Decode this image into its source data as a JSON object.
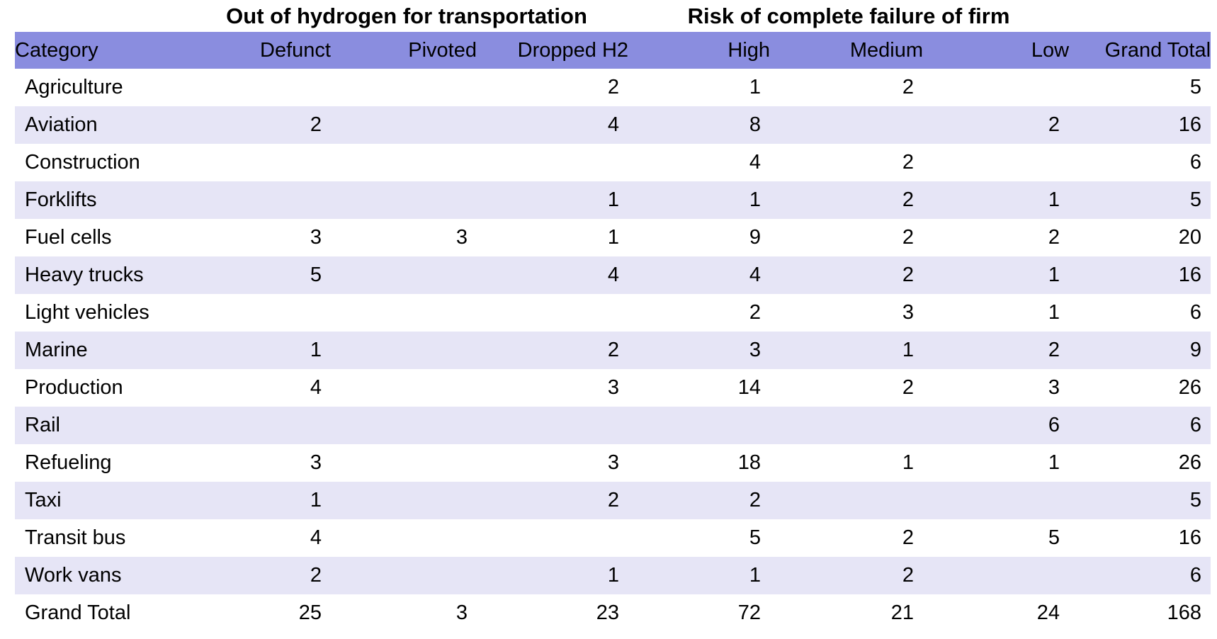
{
  "chart_data": {
    "type": "table",
    "group_headers": [
      {
        "label": "Out of hydrogen for transportation",
        "columns_spanned": [
          "Defunct",
          "Pivoted",
          "Dropped H2"
        ]
      },
      {
        "label": "Risk of complete failure of firm",
        "columns_spanned": [
          "High",
          "Medium",
          "Low"
        ]
      }
    ],
    "columns": [
      "Category",
      "Defunct",
      "Pivoted",
      "Dropped H2",
      "High",
      "Medium",
      "Low",
      "Grand Total"
    ],
    "rows": [
      {
        "category": "Agriculture",
        "values": [
          "",
          "",
          "2",
          "1",
          "2",
          "",
          "5"
        ]
      },
      {
        "category": "Aviation",
        "values": [
          "2",
          "",
          "4",
          "8",
          "",
          "2",
          "16"
        ]
      },
      {
        "category": "Construction",
        "values": [
          "",
          "",
          "",
          "4",
          "2",
          "",
          "6"
        ]
      },
      {
        "category": "Forklifts",
        "values": [
          "",
          "",
          "1",
          "1",
          "2",
          "1",
          "5"
        ]
      },
      {
        "category": "Fuel cells",
        "values": [
          "3",
          "3",
          "1",
          "9",
          "2",
          "2",
          "20"
        ]
      },
      {
        "category": "Heavy trucks",
        "values": [
          "5",
          "",
          "4",
          "4",
          "2",
          "1",
          "16"
        ]
      },
      {
        "category": "Light vehicles",
        "values": [
          "",
          "",
          "",
          "2",
          "3",
          "1",
          "6"
        ]
      },
      {
        "category": "Marine",
        "values": [
          "1",
          "",
          "2",
          "3",
          "1",
          "2",
          "9"
        ]
      },
      {
        "category": "Production",
        "values": [
          "4",
          "",
          "3",
          "14",
          "2",
          "3",
          "26"
        ]
      },
      {
        "category": "Rail",
        "values": [
          "",
          "",
          "",
          "",
          "",
          "6",
          "6"
        ]
      },
      {
        "category": "Refueling",
        "values": [
          "3",
          "",
          "3",
          "18",
          "1",
          "1",
          "26"
        ]
      },
      {
        "category": "Taxi",
        "values": [
          "1",
          "",
          "2",
          "2",
          "",
          "",
          "5"
        ]
      },
      {
        "category": "Transit bus",
        "values": [
          "4",
          "",
          "",
          "5",
          "2",
          "5",
          "16"
        ]
      },
      {
        "category": "Work vans",
        "values": [
          "2",
          "",
          "1",
          "1",
          "2",
          "",
          "6"
        ]
      }
    ],
    "grand_total_row": {
      "category": "Grand Total",
      "values": [
        "25",
        "3",
        "23",
        "72",
        "21",
        "24",
        "168"
      ]
    }
  },
  "colors": {
    "header_bg": "#8A8DDF",
    "band_bg": "#E6E5F6",
    "text": "#000000",
    "background": "#FFFFFF"
  }
}
